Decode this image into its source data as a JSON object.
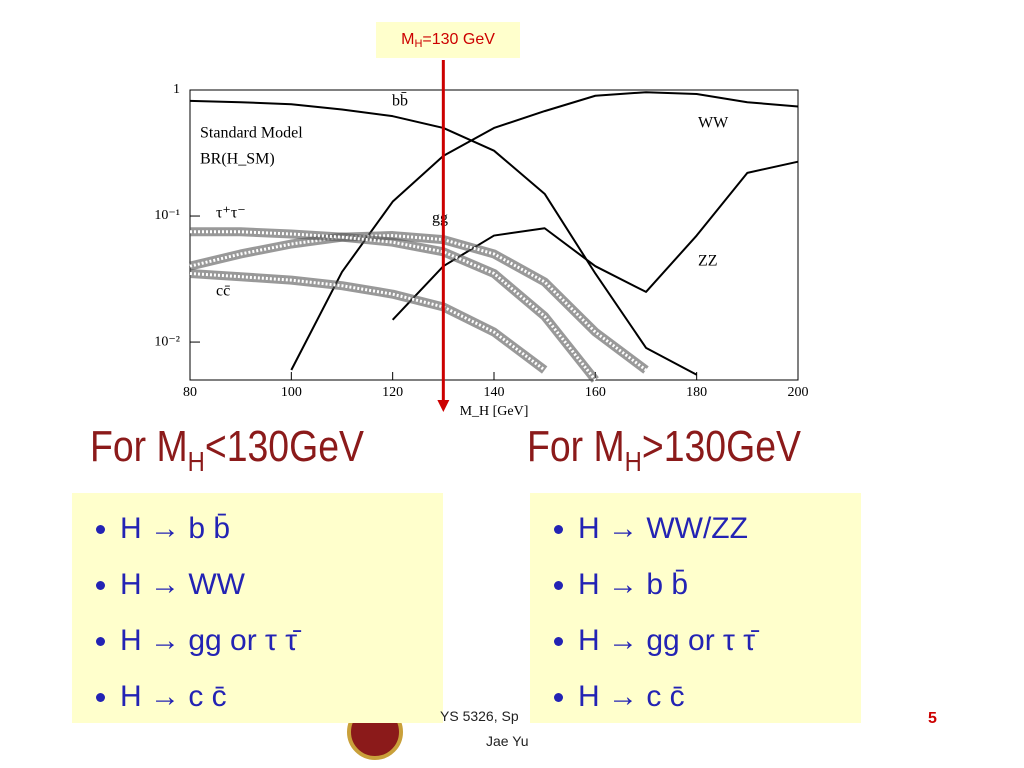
{
  "chart_data": {
    "type": "line",
    "x_label": "M_H [GeV]",
    "texts": [
      "Standard Model",
      "BR(H_SM)"
    ],
    "x": [
      80,
      90,
      100,
      110,
      120,
      130,
      140,
      150,
      160,
      170,
      180,
      190,
      200
    ],
    "series": [
      {
        "name": "bb̄",
        "color": "#000000",
        "band": false,
        "values": [
          0.82,
          0.8,
          0.77,
          0.7,
          0.62,
          0.5,
          0.33,
          0.15,
          0.035,
          0.009,
          0.0055,
          null,
          null
        ]
      },
      {
        "name": "WW",
        "color": "#000000",
        "band": false,
        "values": [
          null,
          null,
          0.006,
          0.036,
          0.13,
          0.3,
          0.5,
          0.68,
          0.9,
          0.96,
          0.93,
          0.8,
          0.74
        ]
      },
      {
        "name": "ZZ",
        "color": "#000000",
        "band": false,
        "values": [
          null,
          null,
          null,
          null,
          0.015,
          0.04,
          0.07,
          0.08,
          0.04,
          0.025,
          0.07,
          0.22,
          0.27
        ]
      },
      {
        "name": "gg",
        "color": "#555555",
        "band": true,
        "values": [
          0.04,
          0.05,
          0.06,
          0.068,
          0.07,
          0.065,
          0.05,
          0.03,
          0.012,
          0.006,
          null,
          null,
          null
        ]
      },
      {
        "name": "τ⁺τ⁻",
        "color": "#555555",
        "band": true,
        "values": [
          0.075,
          0.075,
          0.072,
          0.068,
          0.062,
          0.052,
          0.035,
          0.016,
          0.005,
          null,
          null,
          null,
          null
        ]
      },
      {
        "name": "cc̄",
        "color": "#555555",
        "band": true,
        "values": [
          0.035,
          0.033,
          0.031,
          0.028,
          0.024,
          0.019,
          0.012,
          0.006,
          null,
          null,
          null,
          null,
          null
        ]
      }
    ],
    "log_y": true,
    "xlim": [
      80,
      200
    ],
    "xticks": [
      80,
      100,
      120,
      140,
      160,
      180,
      200
    ],
    "ylim": [
      0.005,
      1
    ],
    "yticks": [
      {
        "value": 0.01,
        "label": "10⁻²"
      },
      {
        "value": 0.1,
        "label": "10⁻¹"
      },
      1
    ],
    "marker": {
      "x": 130,
      "label_main": "M",
      "label_sub": "H",
      "label_rest": "=130 GeV",
      "color": "#cc0000"
    }
  },
  "left": {
    "heading_main": "For M",
    "heading_sub": "H",
    "heading_rest": "<130GeV",
    "bullets": [
      "H → b b̄",
      "H → WW",
      "H → gg or τ τ̄",
      "H → c c̄"
    ]
  },
  "right": {
    "heading_main": "For M",
    "heading_sub": "H",
    "heading_rest": ">130GeV",
    "bullets": [
      "H → WW/ZZ",
      "H → b b̄",
      "H → gg or τ τ̄",
      "H → c c̄"
    ]
  },
  "footer": {
    "course": "YS 5326, Sp",
    "author": "Jae Yu",
    "page": "5"
  }
}
